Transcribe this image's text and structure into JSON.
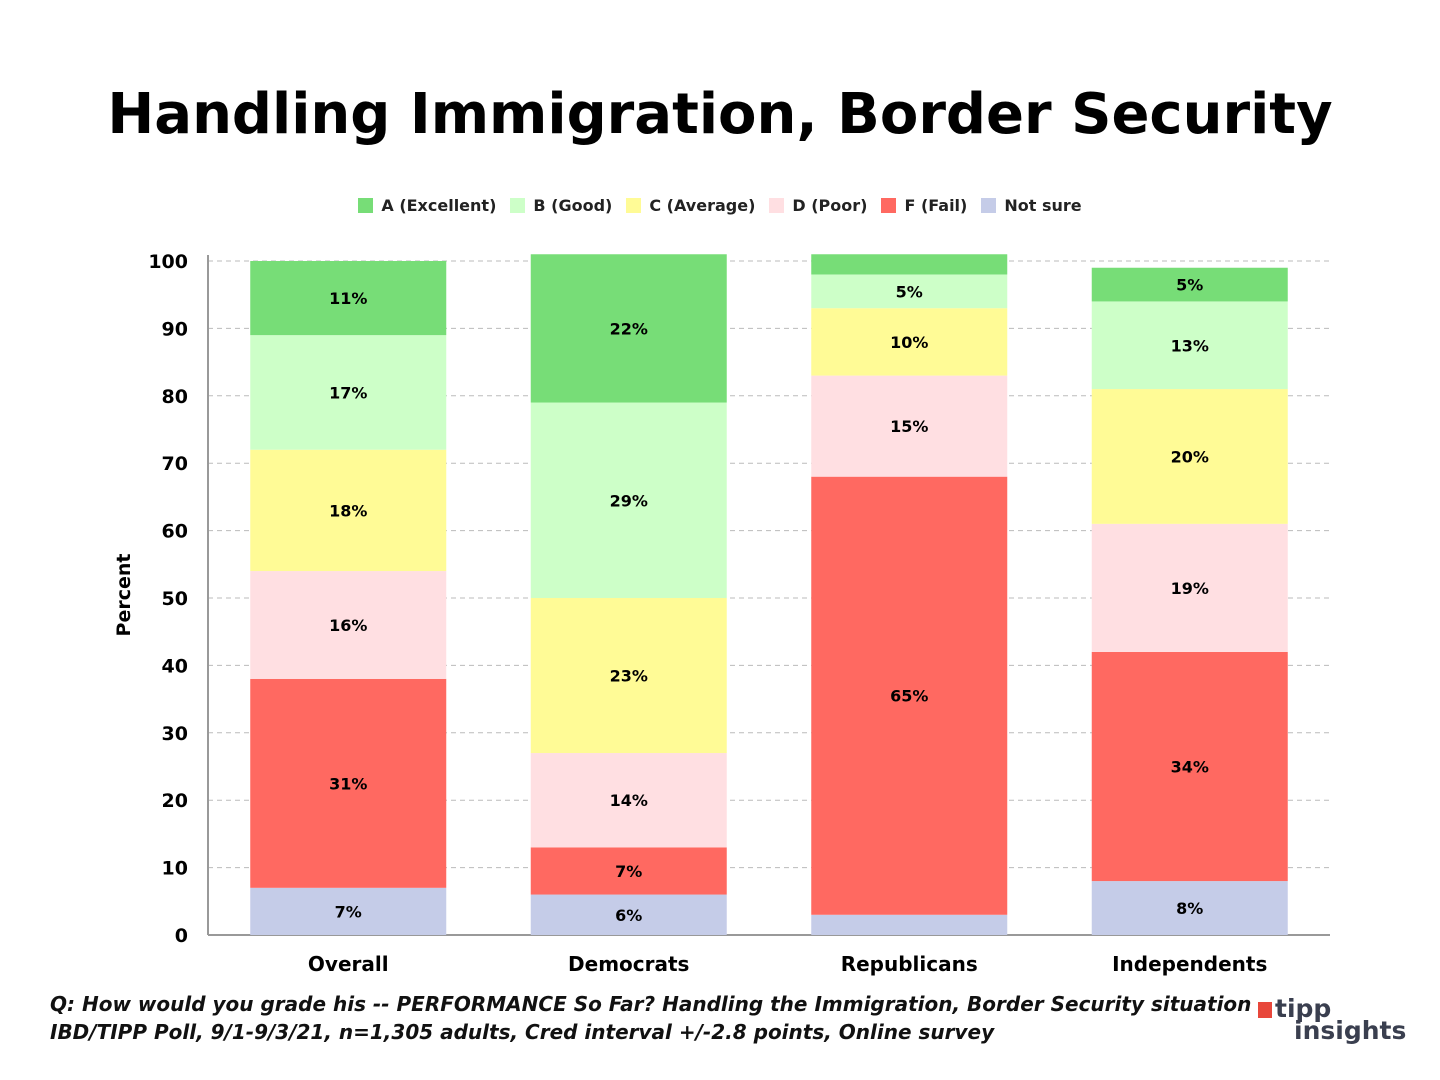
{
  "chart_data": {
    "type": "bar",
    "stacked": true,
    "title": "Handling Immigration, Border Security",
    "ylabel": "Percent",
    "xlabel": "",
    "ylim": [
      0,
      100
    ],
    "yticks": [
      0,
      10,
      20,
      30,
      40,
      50,
      60,
      70,
      80,
      90,
      100
    ],
    "grid": true,
    "legend_position": "top",
    "categories": [
      "Overall",
      "Democrats",
      "Republicans",
      "Independents"
    ],
    "series": [
      {
        "name": "Not sure",
        "color": "#c5cce8",
        "values": [
          7,
          6,
          3,
          8
        ],
        "labels": [
          "7%",
          "6%",
          null,
          "8%"
        ]
      },
      {
        "name": "F (Fail)",
        "color": "#ff6961",
        "values": [
          31,
          7,
          65,
          34
        ],
        "labels": [
          "31%",
          "7%",
          "65%",
          "34%"
        ]
      },
      {
        "name": "D (Poor)",
        "color": "#ffdfe2",
        "values": [
          16,
          14,
          15,
          19
        ],
        "labels": [
          "16%",
          "14%",
          "15%",
          "19%"
        ]
      },
      {
        "name": "C (Average)",
        "color": "#fffb96",
        "values": [
          18,
          23,
          10,
          20
        ],
        "labels": [
          "18%",
          "23%",
          "10%",
          "20%"
        ]
      },
      {
        "name": "B (Good)",
        "color": "#cdffc8",
        "values": [
          17,
          29,
          5,
          13
        ],
        "labels": [
          "17%",
          "29%",
          "5%",
          "13%"
        ]
      },
      {
        "name": "A (Excellent)",
        "color": "#77dd77",
        "values": [
          11,
          22,
          3,
          5
        ],
        "labels": [
          "11%",
          "22%",
          null,
          "5%"
        ]
      }
    ],
    "legend_order": [
      "A (Excellent)",
      "B (Good)",
      "C (Average)",
      "D (Poor)",
      "F (Fail)",
      "Not sure"
    ]
  },
  "footer": {
    "line1": "Q:  How would you grade his -- PERFORMANCE So Far? Handling the Immigration, Border Security situation",
    "line2": "IBD/TIPP Poll, 9/1-9/3/21, n=1,305 adults, Cred interval +/-2.8 points, Online survey"
  },
  "logo": {
    "line1": "tipp",
    "line2": "insights"
  }
}
